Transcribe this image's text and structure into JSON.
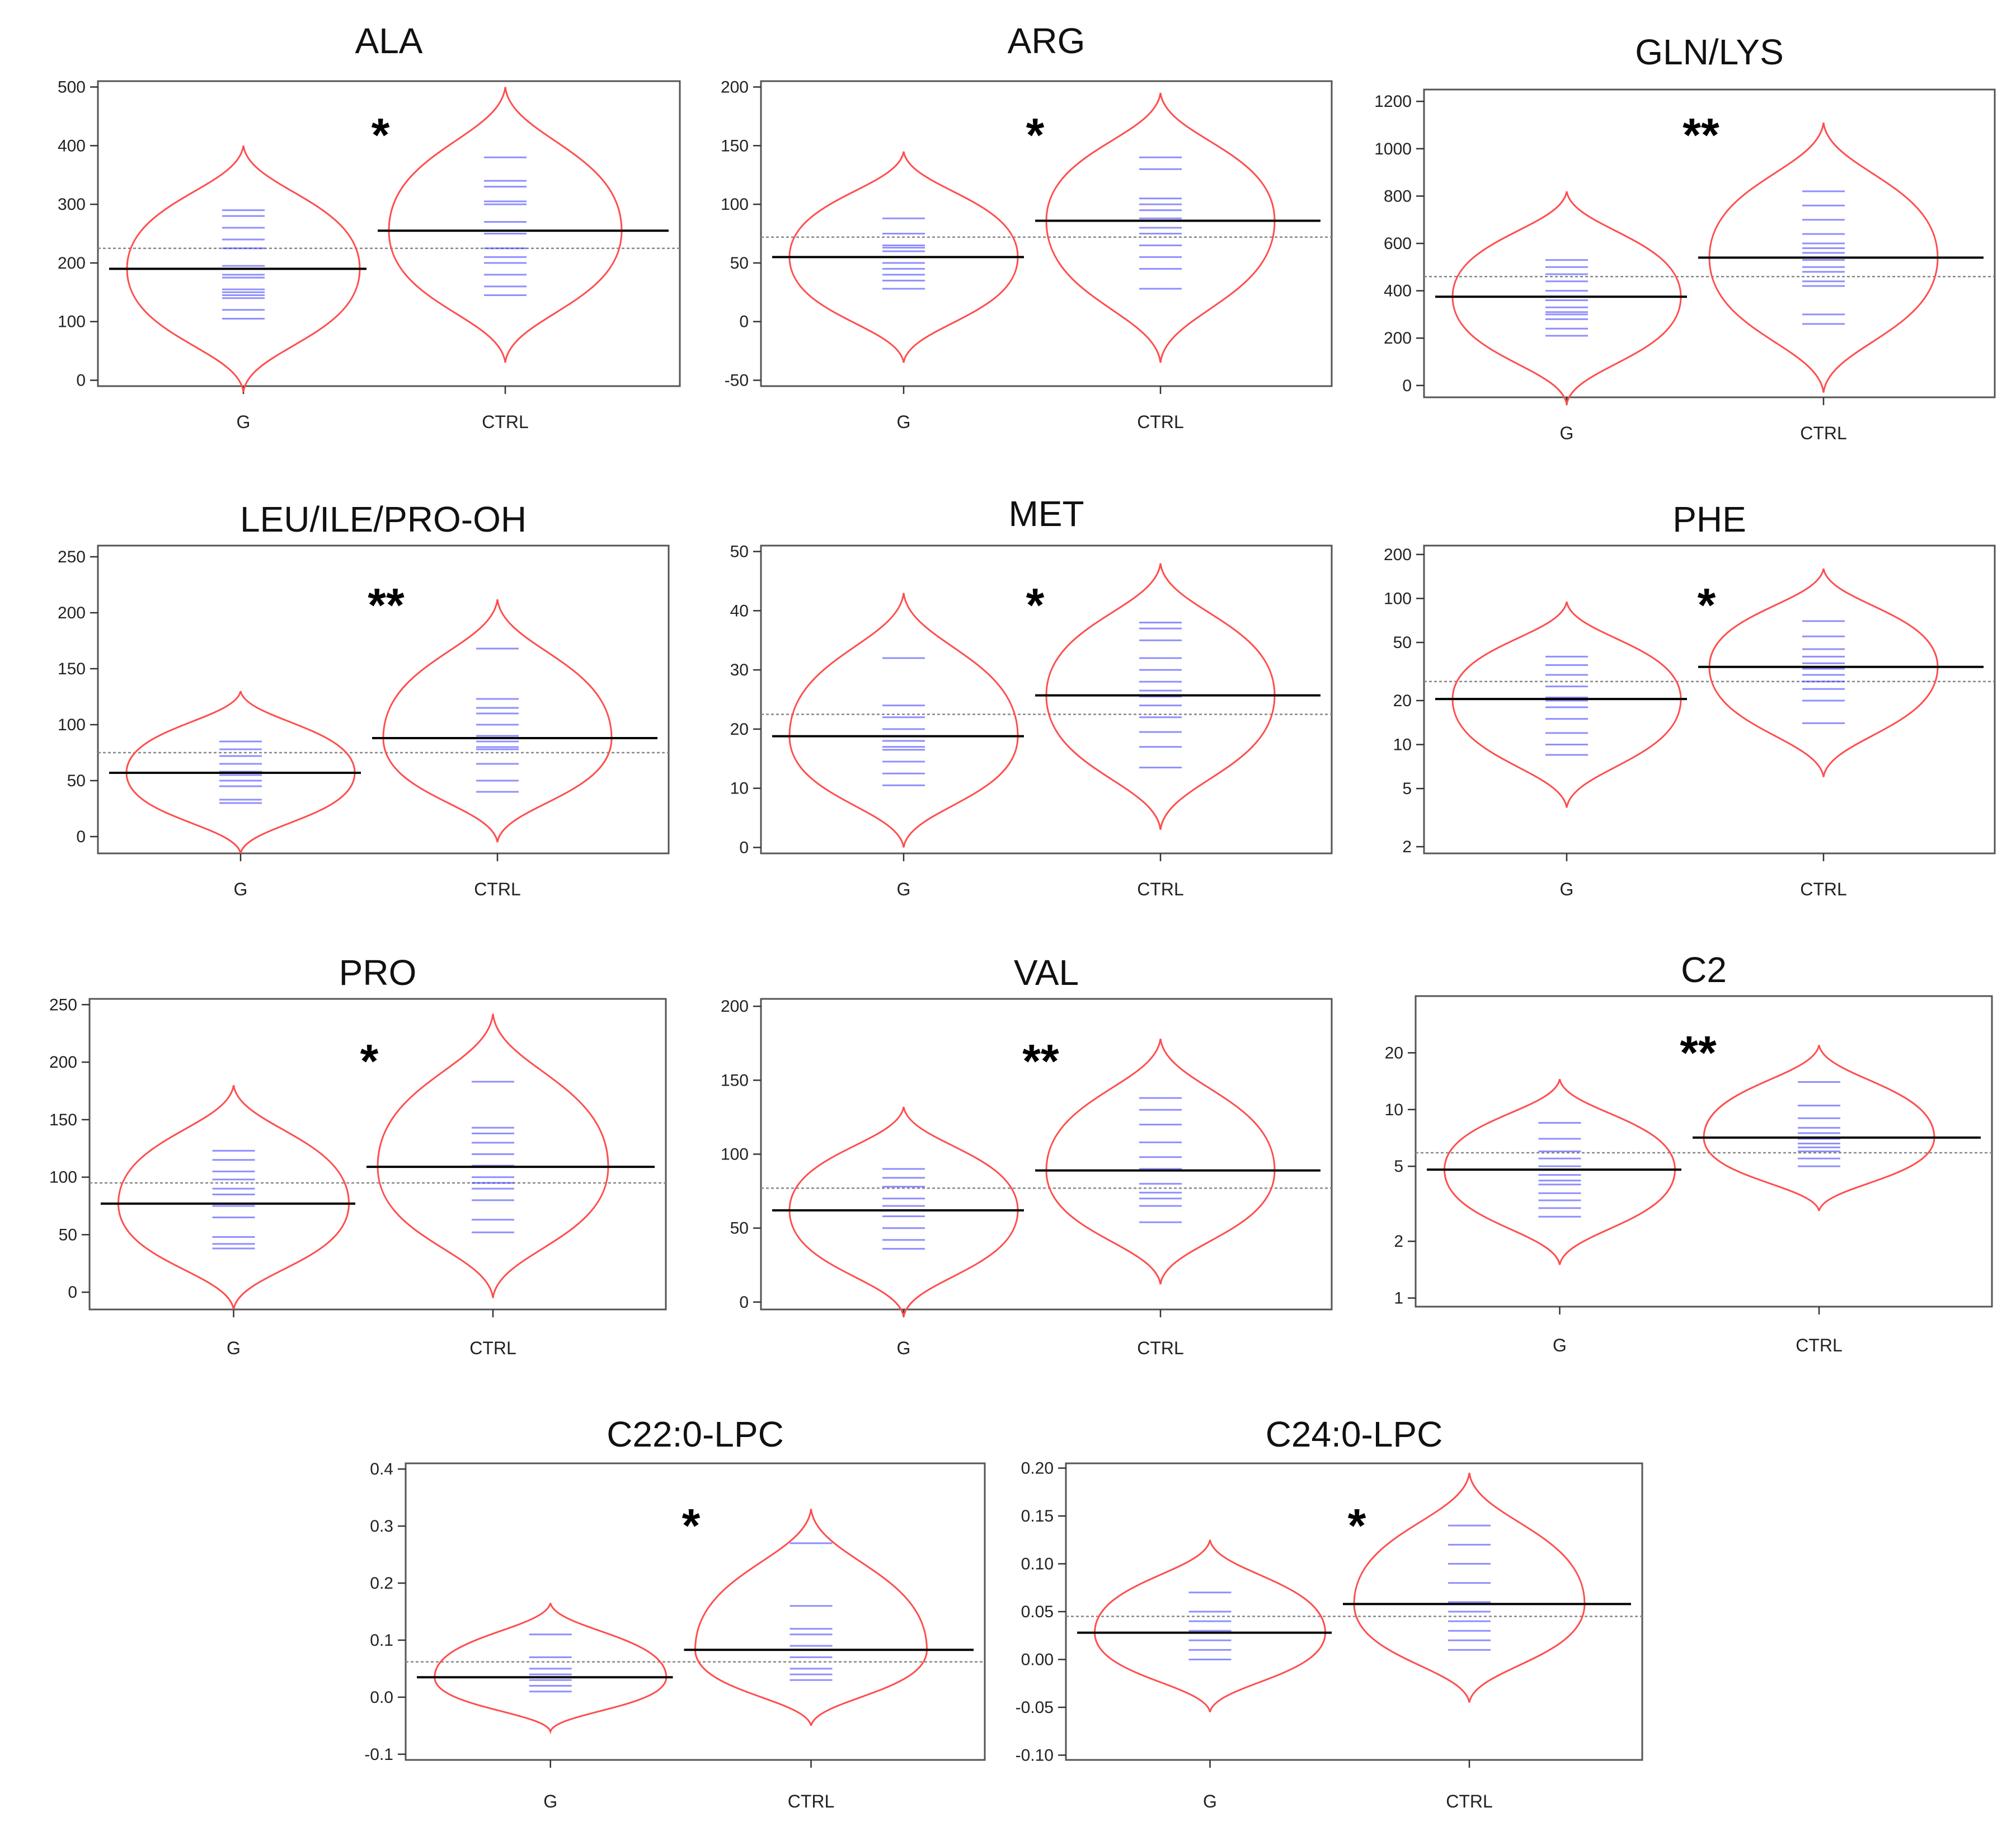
{
  "figure": {
    "colors": {
      "violin": "#ff4d4d",
      "strip": "#3333ff",
      "mean_line": "#000000",
      "grand_mean": "#888888",
      "frame": "#555555"
    }
  },
  "chart_data": [
    {
      "type": "beanplot",
      "title": "ALA",
      "significance": "*",
      "categories": [
        "G",
        "CTRL"
      ],
      "scale": "linear",
      "ylim": [
        -10,
        510
      ],
      "yticks": [
        0,
        100,
        200,
        300,
        400,
        500
      ],
      "ytick_labels": [
        "0",
        "100",
        "200",
        "300",
        "400",
        "500"
      ],
      "violin_range": [
        [
          -20,
          400
        ],
        [
          30,
          500
        ]
      ],
      "violin_mode": [
        [
          190,
          100
        ]
      ],
      "overall_mean": 225,
      "groups": [
        {
          "name": "G",
          "mean": 190,
          "observations": [
            105,
            120,
            140,
            145,
            150,
            155,
            175,
            180,
            190,
            195,
            225,
            240,
            260,
            280,
            290
          ]
        },
        {
          "name": "CTRL",
          "mean": 255,
          "observations": [
            145,
            160,
            180,
            200,
            210,
            225,
            250,
            270,
            300,
            305,
            330,
            340,
            380
          ]
        }
      ]
    },
    {
      "type": "beanplot",
      "title": "ARG",
      "significance": "*",
      "categories": [
        "G",
        "CTRL"
      ],
      "scale": "linear",
      "ylim": [
        -55,
        205
      ],
      "yticks": [
        -50,
        0,
        50,
        100,
        150,
        200
      ],
      "ytick_labels": [
        "-50",
        "0",
        "50",
        "100",
        "150",
        "200"
      ],
      "violin_range": [
        [
          -35,
          145
        ],
        [
          -35,
          195
        ]
      ],
      "overall_mean": 72,
      "groups": [
        {
          "name": "G",
          "mean": 55,
          "observations": [
            28,
            35,
            40,
            45,
            50,
            55,
            60,
            63,
            65,
            75,
            88
          ]
        },
        {
          "name": "CTRL",
          "mean": 86,
          "observations": [
            28,
            45,
            55,
            65,
            75,
            80,
            88,
            95,
            100,
            105,
            130,
            140
          ]
        }
      ]
    },
    {
      "type": "beanplot",
      "title": "GLN/LYS",
      "significance": "**",
      "categories": [
        "G",
        "CTRL"
      ],
      "scale": "linear",
      "ylim": [
        -50,
        1250
      ],
      "yticks": [
        0,
        200,
        400,
        600,
        800,
        1000,
        1200
      ],
      "ytick_labels": [
        "0",
        "200",
        "400",
        "600",
        "800",
        "1000",
        "1200"
      ],
      "violin_range": [
        [
          -80,
          820
        ],
        [
          -30,
          1110
        ]
      ],
      "overall_mean": 460,
      "groups": [
        {
          "name": "G",
          "mean": 375,
          "observations": [
            210,
            240,
            280,
            300,
            310,
            330,
            360,
            400,
            440,
            470,
            500,
            530
          ]
        },
        {
          "name": "CTRL",
          "mean": 540,
          "observations": [
            260,
            300,
            420,
            440,
            480,
            500,
            530,
            560,
            580,
            600,
            640,
            700,
            760,
            820
          ]
        }
      ]
    },
    {
      "type": "beanplot",
      "title": "LEU/ILE/PRO-OH",
      "significance": "**",
      "categories": [
        "G",
        "CTRL"
      ],
      "scale": "linear",
      "ylim": [
        -15,
        260
      ],
      "yticks": [
        0,
        50,
        100,
        150,
        200,
        250
      ],
      "ytick_labels": [
        "0",
        "50",
        "100",
        "150",
        "200",
        "250"
      ],
      "violin_range": [
        [
          -15,
          130
        ],
        [
          -5,
          212
        ]
      ],
      "overall_mean": 75,
      "groups": [
        {
          "name": "G",
          "mean": 57,
          "observations": [
            30,
            33,
            45,
            50,
            55,
            58,
            65,
            72,
            78,
            85
          ]
        },
        {
          "name": "CTRL",
          "mean": 88,
          "observations": [
            40,
            50,
            65,
            78,
            80,
            85,
            90,
            100,
            110,
            115,
            123,
            168
          ]
        }
      ]
    },
    {
      "type": "beanplot",
      "title": "MET",
      "significance": "*",
      "categories": [
        "G",
        "CTRL"
      ],
      "scale": "linear",
      "ylim": [
        -1,
        51
      ],
      "yticks": [
        0,
        10,
        20,
        30,
        40,
        50
      ],
      "ytick_labels": [
        "0",
        "10",
        "20",
        "30",
        "40",
        "50"
      ],
      "violin_range": [
        [
          0,
          43
        ],
        [
          3,
          48
        ]
      ],
      "overall_mean": 22.5,
      "groups": [
        {
          "name": "G",
          "mean": 18.8,
          "observations": [
            10.5,
            12.5,
            14.5,
            16.5,
            17,
            18,
            20,
            22,
            24,
            32
          ]
        },
        {
          "name": "CTRL",
          "mean": 25.7,
          "observations": [
            13.5,
            17,
            19.5,
            22,
            24,
            25.5,
            26.5,
            28,
            30,
            32,
            35,
            37,
            38
          ]
        }
      ]
    },
    {
      "type": "beanplot",
      "title": "PHE",
      "significance": "*",
      "categories": [
        "G",
        "CTRL"
      ],
      "scale": "log",
      "ylim": [
        1.8,
        230
      ],
      "yticks": [
        2,
        5,
        10,
        20,
        50,
        100,
        200
      ],
      "ytick_labels": [
        "2",
        "5",
        "10",
        "20",
        "50",
        "100",
        "200"
      ],
      "violin_range": [
        [
          3.7,
          95
        ],
        [
          6,
          160
        ]
      ],
      "overall_mean": 27,
      "groups": [
        {
          "name": "G",
          "mean": 20.5,
          "observations": [
            8.5,
            10,
            12,
            15,
            18,
            20,
            21,
            25,
            30,
            35,
            40
          ]
        },
        {
          "name": "CTRL",
          "mean": 34,
          "observations": [
            14,
            20,
            24,
            27,
            30,
            33,
            36,
            40,
            45,
            55,
            70
          ]
        }
      ]
    },
    {
      "type": "beanplot",
      "title": "PRO",
      "significance": "*",
      "categories": [
        "G",
        "CTRL"
      ],
      "scale": "linear",
      "ylim": [
        -15,
        255
      ],
      "yticks": [
        0,
        50,
        100,
        150,
        200,
        250
      ],
      "ytick_labels": [
        "0",
        "50",
        "100",
        "150",
        "200",
        "250"
      ],
      "violin_range": [
        [
          -15,
          180
        ],
        [
          -5,
          242
        ]
      ],
      "overall_mean": 95,
      "groups": [
        {
          "name": "G",
          "mean": 77,
          "observations": [
            38,
            42,
            48,
            65,
            75,
            85,
            90,
            98,
            105,
            115,
            123
          ]
        },
        {
          "name": "CTRL",
          "mean": 109,
          "observations": [
            52,
            63,
            80,
            90,
            95,
            100,
            110,
            120,
            130,
            138,
            143,
            183
          ]
        }
      ]
    },
    {
      "type": "beanplot",
      "title": "VAL",
      "significance": "**",
      "categories": [
        "G",
        "CTRL"
      ],
      "scale": "linear",
      "ylim": [
        -5,
        205
      ],
      "yticks": [
        0,
        50,
        100,
        150,
        200
      ],
      "ytick_labels": [
        "0",
        "50",
        "100",
        "150",
        "200"
      ],
      "violin_range": [
        [
          -10,
          132
        ],
        [
          12,
          178
        ]
      ],
      "overall_mean": 77,
      "groups": [
        {
          "name": "G",
          "mean": 62,
          "observations": [
            36,
            42,
            50,
            58,
            62,
            65,
            70,
            78,
            84,
            90
          ]
        },
        {
          "name": "CTRL",
          "mean": 89,
          "observations": [
            54,
            65,
            70,
            74,
            80,
            90,
            98,
            108,
            120,
            130,
            138
          ]
        }
      ]
    },
    {
      "type": "beanplot",
      "title": "C2",
      "significance": "**",
      "categories": [
        "G",
        "CTRL"
      ],
      "scale": "log",
      "ylim": [
        0.9,
        40
      ],
      "yticks": [
        1,
        2,
        5,
        10,
        20
      ],
      "ytick_labels": [
        "1",
        "2",
        "5",
        "10",
        "20"
      ],
      "violin_range": [
        [
          1.5,
          14.5
        ],
        [
          2.9,
          22
        ]
      ],
      "overall_mean": 5.9,
      "groups": [
        {
          "name": "G",
          "mean": 4.8,
          "observations": [
            2.7,
            3,
            3.3,
            3.6,
            4,
            4.2,
            4.5,
            5,
            5.5,
            6,
            7,
            8.5
          ]
        },
        {
          "name": "CTRL",
          "mean": 7.1,
          "observations": [
            5,
            5.5,
            6,
            6.3,
            6.6,
            7,
            7.5,
            8,
            9,
            10.5,
            14
          ]
        }
      ]
    },
    {
      "type": "beanplot",
      "title": "C22:0-LPC",
      "significance": "*",
      "categories": [
        "G",
        "CTRL"
      ],
      "scale": "linear",
      "ylim": [
        -0.11,
        0.41
      ],
      "yticks": [
        -0.1,
        0.0,
        0.1,
        0.2,
        0.3,
        0.4
      ],
      "ytick_labels": [
        "-0.1",
        "0.0",
        "0.1",
        "0.2",
        "0.3",
        "0.4"
      ],
      "violin_range": [
        [
          -0.06,
          0.165
        ],
        [
          -0.05,
          0.33
        ]
      ],
      "overall_mean": 0.062,
      "groups": [
        {
          "name": "G",
          "mean": 0.035,
          "observations": [
            0.01,
            0.02,
            0.03,
            0.04,
            0.05,
            0.07,
            0.11
          ]
        },
        {
          "name": "CTRL",
          "mean": 0.083,
          "observations": [
            0.03,
            0.04,
            0.05,
            0.07,
            0.09,
            0.11,
            0.12,
            0.16,
            0.27
          ]
        }
      ]
    },
    {
      "type": "beanplot",
      "title": "C24:0-LPC",
      "significance": "*",
      "categories": [
        "G",
        "CTRL"
      ],
      "scale": "linear",
      "ylim": [
        -0.105,
        0.205
      ],
      "yticks": [
        -0.1,
        -0.05,
        0.0,
        0.05,
        0.1,
        0.15,
        0.2
      ],
      "ytick_labels": [
        "-0.10",
        "-0.05",
        "0.00",
        "0.05",
        "0.10",
        "0.15",
        "0.20"
      ],
      "violin_range": [
        [
          -0.055,
          0.125
        ],
        [
          -0.045,
          0.195
        ]
      ],
      "overall_mean": 0.045,
      "groups": [
        {
          "name": "G",
          "mean": 0.028,
          "observations": [
            0.0,
            0.01,
            0.02,
            0.03,
            0.04,
            0.05,
            0.07
          ]
        },
        {
          "name": "CTRL",
          "mean": 0.058,
          "observations": [
            0.01,
            0.02,
            0.03,
            0.04,
            0.05,
            0.06,
            0.08,
            0.1,
            0.12,
            0.14
          ]
        }
      ]
    }
  ]
}
